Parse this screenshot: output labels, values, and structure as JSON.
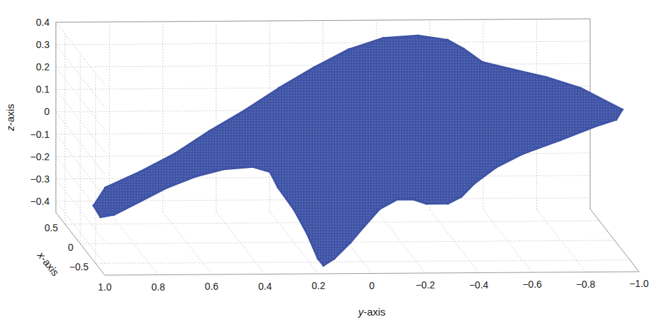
{
  "chart_data": {
    "type": "scatter3d",
    "xlabel": "x-axis",
    "ylabel": "y-axis",
    "zlabel": "z-axis",
    "xlim": [
      -0.8,
      0.8
    ],
    "ylim": [
      -1,
      1
    ],
    "zlim": [
      -0.45,
      0.4
    ],
    "xticks": [
      {
        "value": -0.5,
        "label": "−0.5"
      },
      0,
      0.5
    ],
    "yticks": [
      {
        "value": -1,
        "label": "−1.0"
      },
      {
        "value": -0.8,
        "label": "−0.8"
      },
      {
        "value": -0.6,
        "label": "−0.6"
      },
      {
        "value": -0.4,
        "label": "−0.4"
      },
      {
        "value": -0.2,
        "label": "−0.2"
      },
      0,
      0.2,
      0.4,
      0.6,
      0.8,
      {
        "value": 1,
        "label": "1.0"
      }
    ],
    "zticks": [
      {
        "value": -0.4,
        "label": "−0.4"
      },
      {
        "value": -0.3,
        "label": "−0.3"
      },
      {
        "value": -0.2,
        "label": "−0.2"
      },
      {
        "value": -0.1,
        "label": "−0.1"
      },
      0,
      0.1,
      0.2,
      0.3,
      0.4
    ],
    "grid": true,
    "series": [
      {
        "type": "area",
        "marker": "point",
        "color": "#3f54a6",
        "x": [
          0,
          0.4,
          0.4,
          0.4,
          0.4,
          0.4,
          0.4,
          0.4,
          0.4,
          0.4,
          0.4,
          0.4,
          0.4,
          0.4,
          0.4,
          0.4,
          0.4,
          -0.6,
          -0.4,
          -0.4,
          -0.4,
          -0.4,
          -0.4,
          -0.4,
          -0.4,
          -0.4,
          -0.4,
          -0.4,
          -0.4,
          -0.7,
          -0.7,
          -0.7,
          -0.7,
          -0.7,
          -0.7,
          -0.7,
          -0.7,
          -0.7,
          -0.7,
          -0.4,
          -0.4,
          -0.4,
          -0.4,
          -0.4,
          -0.4,
          -0.4
        ],
        "y": [
          0.95,
          0.86,
          0.73,
          0.6,
          0.47,
          0.34,
          0.21,
          0.08,
          -0.05,
          -0.18,
          -0.31,
          -0.42,
          -0.48,
          -0.55,
          -0.65,
          -0.79,
          -0.92,
          -0.96,
          -0.96,
          -0.88,
          -0.75,
          -0.61,
          -0.51,
          -0.43,
          -0.38,
          -0.33,
          -0.25,
          -0.2,
          -0.14,
          -0.04,
          0.02,
          0.07,
          0.13,
          0.17,
          0.19,
          0.23,
          0.28,
          0.34,
          0.37,
          0.4,
          0.51,
          0.61,
          0.72,
          0.82,
          0.92,
          0.97
        ],
        "z": [
          -0.28,
          -0.27,
          -0.2,
          -0.12,
          -0.02,
          0.07,
          0.17,
          0.26,
          0.34,
          0.39,
          0.4,
          0.38,
          0.34,
          0.28,
          0.25,
          0.21,
          0.16,
          0.24,
          0.16,
          0.13,
          0.07,
          0.01,
          -0.05,
          -0.12,
          -0.18,
          -0.21,
          -0.21,
          -0.19,
          -0.19,
          -0.18,
          -0.26,
          -0.33,
          -0.4,
          -0.43,
          -0.4,
          -0.29,
          -0.18,
          -0.08,
          -0.01,
          -0.04,
          -0.05,
          -0.08,
          -0.13,
          -0.19,
          -0.25,
          -0.26
        ]
      }
    ]
  }
}
